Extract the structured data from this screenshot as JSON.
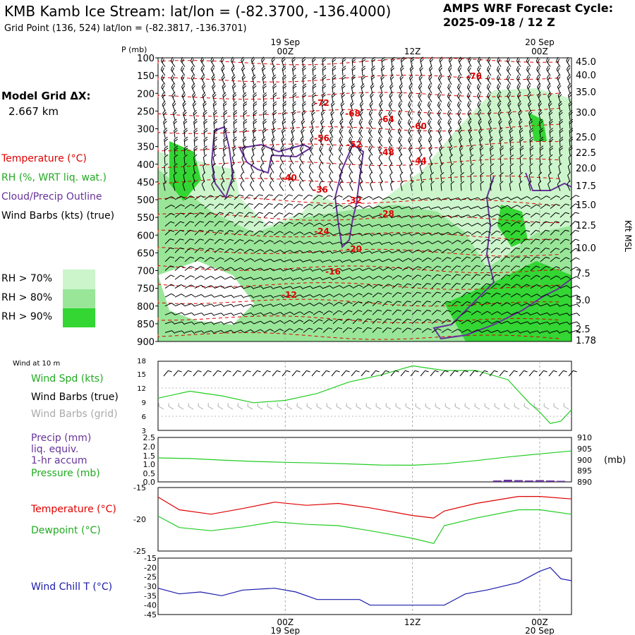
{
  "header": {
    "title": "KMB Kamb Ice Stream:  lat/lon = (-82.3700, -136.4000)",
    "subtitle": "Grid Point (136, 524) lat/lon = (-82.3817, -136.3701)",
    "cycle_line1": "AMPS WRF Forecast Cycle:",
    "cycle_line2": "2025-09-18 / 12  Z"
  },
  "model": {
    "grid_label": "Model Grid ΔX:",
    "grid_value": "2.667 km"
  },
  "legend": {
    "temperature": "Temperature (°C)",
    "rh": "RH (%, WRT liq. wat.)",
    "cloud": "Cloud/Precip Outline",
    "wind_barbs": "Wind Barbs (kts) (true)",
    "rh70": "RH > 70%",
    "rh80": "RH > 80%",
    "rh90": "RH > 90%",
    "rh70_color": "#ccf5cc",
    "rh80_color": "#99e699",
    "rh90_color": "#33d633"
  },
  "time_axis": {
    "top_dates": [
      "19 Sep",
      "20 Sep"
    ],
    "top_times": [
      "00Z",
      "12Z",
      "00Z"
    ],
    "bottom_times": [
      "00Z",
      "12Z",
      "00Z"
    ],
    "bottom_dates": [
      "19 Sep",
      "20 Sep"
    ]
  },
  "colors": {
    "temperature": "#e00000",
    "rh": "#22cc22",
    "cloud": "#663399",
    "barbs": "#000000",
    "grid_barbs": "#aaaaaa",
    "wind_chill": "#1a1aaa"
  },
  "chart_data": [
    {
      "type": "heatmap",
      "name": "cross_section",
      "y_axis_label": "P (mb)",
      "y_ticks": [
        "100",
        "150",
        "200",
        "250",
        "300",
        "350",
        "400",
        "450",
        "500",
        "550",
        "600",
        "650",
        "700",
        "750",
        "800",
        "850",
        "900"
      ],
      "right_axis_label": "Kft MSL",
      "right_ticks": [
        "45.0",
        "40.0",
        "35.0",
        "30.0",
        "25.0",
        "22.5",
        "20.0",
        "17.5",
        "15.0",
        "12.5",
        "10.0",
        "7.5",
        "5.0",
        "2.5",
        "1.78"
      ],
      "temperature_labels": [
        "-76",
        "-72",
        "-68",
        "-64",
        "-60",
        "-56",
        "-52",
        "-48",
        "-44",
        "-40",
        "-36",
        "-32",
        "-28",
        "-24",
        "-20",
        "-16",
        "-12"
      ],
      "x_range_hours": [
        0,
        39
      ]
    },
    {
      "type": "line",
      "name": "wind_10m",
      "panel_label": "Wind at 10 m",
      "series_labels": [
        "Wind Spd (kts)",
        "Wind Barbs (true)",
        "Wind Barbs (grid)"
      ],
      "y_ticks": [
        "18",
        "15",
        "12",
        "9",
        "6",
        "3"
      ],
      "ylim": [
        3,
        18
      ],
      "x_hours": [
        0,
        3,
        6,
        9,
        12,
        15,
        18,
        21,
        24,
        27,
        30,
        33,
        35,
        36,
        37,
        38,
        39
      ],
      "wind_speed": [
        10,
        11.5,
        10.5,
        9,
        9.5,
        11,
        13.5,
        15,
        17,
        16,
        16,
        14,
        9,
        7,
        4.5,
        5,
        7.5
      ]
    },
    {
      "type": "line",
      "name": "precip_pressure",
      "series_labels": [
        "Precip (mm)",
        "liq. equiv.",
        "1-hr accum",
        "Pressure (mb)"
      ],
      "left_ticks": [
        "2.5",
        "2.0",
        "1.5",
        "1.0",
        "0.5",
        "0.0"
      ],
      "right_ticks": [
        "910",
        "905",
        "900",
        "895",
        "890"
      ],
      "right_unit": "(mb)",
      "x_hours": [
        0,
        3,
        6,
        9,
        12,
        15,
        18,
        21,
        24,
        27,
        30,
        33,
        36,
        39
      ],
      "pressure": [
        900.8,
        900.5,
        899.8,
        899.2,
        898.8,
        898.5,
        898.1,
        897.6,
        897.5,
        898.2,
        899.6,
        901.2,
        902.6,
        903.9
      ],
      "precip_x": [
        32,
        33,
        34,
        35,
        36,
        37,
        38
      ],
      "precip": [
        0.08,
        0.12,
        0.1,
        0.08,
        0.1,
        0.08,
        0.06
      ]
    },
    {
      "type": "line",
      "name": "temp_dewpoint",
      "series_labels": [
        "Temperature (°C)",
        "Dewpoint (°C)"
      ],
      "y_ticks": [
        "-15",
        "-20",
        "-25"
      ],
      "ylim": [
        -25,
        -15
      ],
      "x_hours": [
        0,
        2,
        5,
        8,
        11,
        14,
        17,
        20,
        24,
        26,
        27,
        30,
        34,
        36,
        39
      ],
      "temperature": [
        -16.5,
        -18.5,
        -19.2,
        -18.3,
        -17.3,
        -17.8,
        -17.5,
        -18.2,
        -19.4,
        -19.8,
        -18.7,
        -17.5,
        -16.4,
        -16.4,
        -16.8
      ],
      "dewpoint": [
        -19.5,
        -21.3,
        -21.8,
        -21.2,
        -20.4,
        -20.8,
        -21.0,
        -21.8,
        -23.0,
        -23.8,
        -21.0,
        -19.8,
        -18.5,
        -18.5,
        -19.2
      ]
    },
    {
      "type": "line",
      "name": "wind_chill",
      "series_labels": [
        "Wind Chill T (°C)"
      ],
      "y_ticks": [
        "-15",
        "-20",
        "-25",
        "-30",
        "-35",
        "-40",
        "-45"
      ],
      "ylim": [
        -45,
        -15
      ],
      "x_hours": [
        0,
        2,
        4,
        6,
        8,
        11,
        13,
        15,
        17,
        19,
        20,
        22,
        24,
        27,
        29,
        31,
        34,
        36,
        37,
        38,
        39
      ],
      "wind_chill": [
        -31,
        -34,
        -33,
        -35,
        -32,
        -31,
        -33,
        -37,
        -37,
        -37,
        -40,
        -40,
        -40,
        -40,
        -34,
        -32,
        -28,
        -22,
        -20,
        -26,
        -27
      ]
    }
  ]
}
